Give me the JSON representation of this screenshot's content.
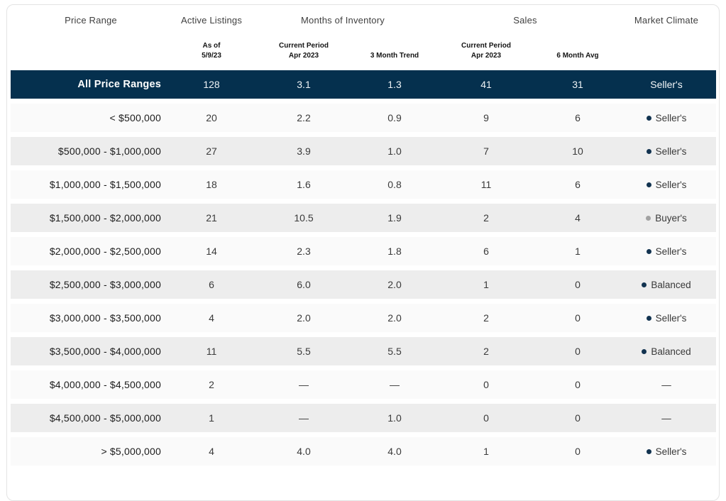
{
  "chart_data": {
    "type": "table",
    "column_groups": [
      {
        "label": "Price Range"
      },
      {
        "label": "Active Listings"
      },
      {
        "label": "Months of Inventory"
      },
      {
        "label": "Sales"
      },
      {
        "label": "Market Climate"
      }
    ],
    "sub_headers": [
      {
        "line1": "As of",
        "line2": "5/9/23"
      },
      {
        "line1": "Current Period",
        "line2": "Apr 2023"
      },
      {
        "line1": "3 Month Trend",
        "line2": ""
      },
      {
        "line1": "Current Period",
        "line2": "Apr 2023"
      },
      {
        "line1": "6 Month Avg",
        "line2": ""
      }
    ],
    "summary_row": {
      "label": "All Price Ranges",
      "values": [
        "128",
        "3.1",
        "1.3",
        "41",
        "31"
      ],
      "climate": "Seller's",
      "climate_type": "summary"
    },
    "rows": [
      {
        "label": "< $500,000",
        "values": [
          "20",
          "2.2",
          "0.9",
          "9",
          "6"
        ],
        "climate": "Seller's",
        "climate_type": "sellers"
      },
      {
        "label": "$500,000 - $1,000,000",
        "values": [
          "27",
          "3.9",
          "1.0",
          "7",
          "10"
        ],
        "climate": "Seller's",
        "climate_type": "sellers"
      },
      {
        "label": "$1,000,000 - $1,500,000",
        "values": [
          "18",
          "1.6",
          "0.8",
          "11",
          "6"
        ],
        "climate": "Seller's",
        "climate_type": "sellers"
      },
      {
        "label": "$1,500,000 - $2,000,000",
        "values": [
          "21",
          "10.5",
          "1.9",
          "2",
          "4"
        ],
        "climate": "Buyer's",
        "climate_type": "buyers"
      },
      {
        "label": "$2,000,000 - $2,500,000",
        "values": [
          "14",
          "2.3",
          "1.8",
          "6",
          "1"
        ],
        "climate": "Seller's",
        "climate_type": "sellers"
      },
      {
        "label": "$2,500,000 - $3,000,000",
        "values": [
          "6",
          "6.0",
          "2.0",
          "1",
          "0"
        ],
        "climate": "Balanced",
        "climate_type": "balanced"
      },
      {
        "label": "$3,000,000 - $3,500,000",
        "values": [
          "4",
          "2.0",
          "2.0",
          "2",
          "0"
        ],
        "climate": "Seller's",
        "climate_type": "sellers"
      },
      {
        "label": "$3,500,000 - $4,000,000",
        "values": [
          "11",
          "5.5",
          "5.5",
          "2",
          "0"
        ],
        "climate": "Balanced",
        "climate_type": "balanced"
      },
      {
        "label": "$4,000,000 - $4,500,000",
        "values": [
          "2",
          "—",
          "—",
          "0",
          "0"
        ],
        "climate": "—",
        "climate_type": "none"
      },
      {
        "label": "$4,500,000 - $5,000,000",
        "values": [
          "1",
          "—",
          "1.0",
          "0",
          "0"
        ],
        "climate": "—",
        "climate_type": "none"
      },
      {
        "label": "> $5,000,000",
        "values": [
          "4",
          "4.0",
          "4.0",
          "1",
          "0"
        ],
        "climate": "Seller's",
        "climate_type": "sellers"
      }
    ]
  },
  "colors": {
    "navy": "#05304e",
    "bullet_navy": "#123350",
    "bullet_gray": "#a2a2a2",
    "row_light": "#fafafa",
    "row_shade": "#ededed"
  }
}
